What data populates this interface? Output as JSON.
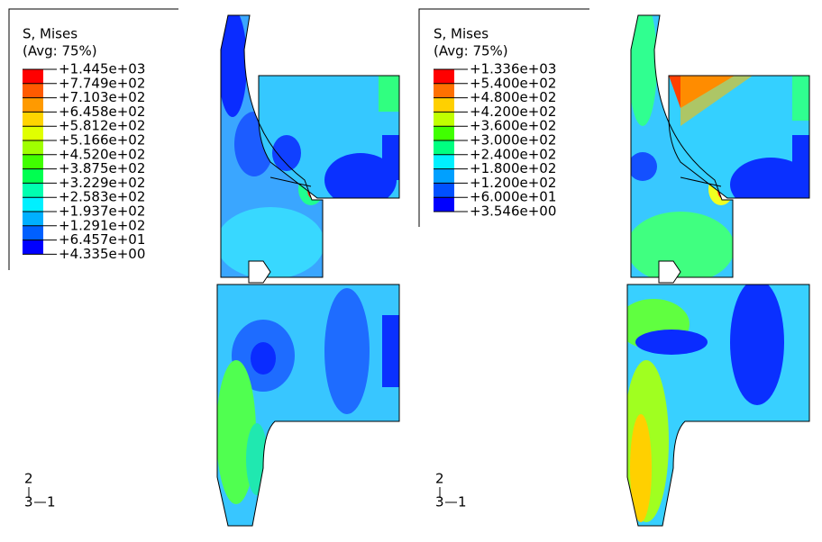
{
  "panels": [
    {
      "legend": {
        "title": "S, Mises",
        "subtitle": "(Avg: 75%)",
        "labels": [
          "+1.445e+03",
          "+7.749e+02",
          "+7.103e+02",
          "+6.458e+02",
          "+5.812e+02",
          "+5.166e+02",
          "+4.520e+02",
          "+3.875e+02",
          "+3.229e+02",
          "+2.583e+02",
          "+1.937e+02",
          "+1.291e+02",
          "+6.457e+01",
          "+4.335e+00"
        ]
      },
      "triad": {
        "y": "2",
        "z": "3",
        "x": "1"
      }
    },
    {
      "legend": {
        "title": "S, Mises",
        "subtitle": "(Avg: 75%)",
        "labels": [
          "+1.336e+03",
          "+5.400e+02",
          "+4.800e+02",
          "+4.200e+02",
          "+3.600e+02",
          "+3.000e+02",
          "+2.400e+02",
          "+1.800e+02",
          "+1.200e+02",
          "+6.000e+01",
          "+3.546e+00"
        ]
      },
      "triad": {
        "y": "2",
        "z": "3",
        "x": "1"
      }
    }
  ]
}
